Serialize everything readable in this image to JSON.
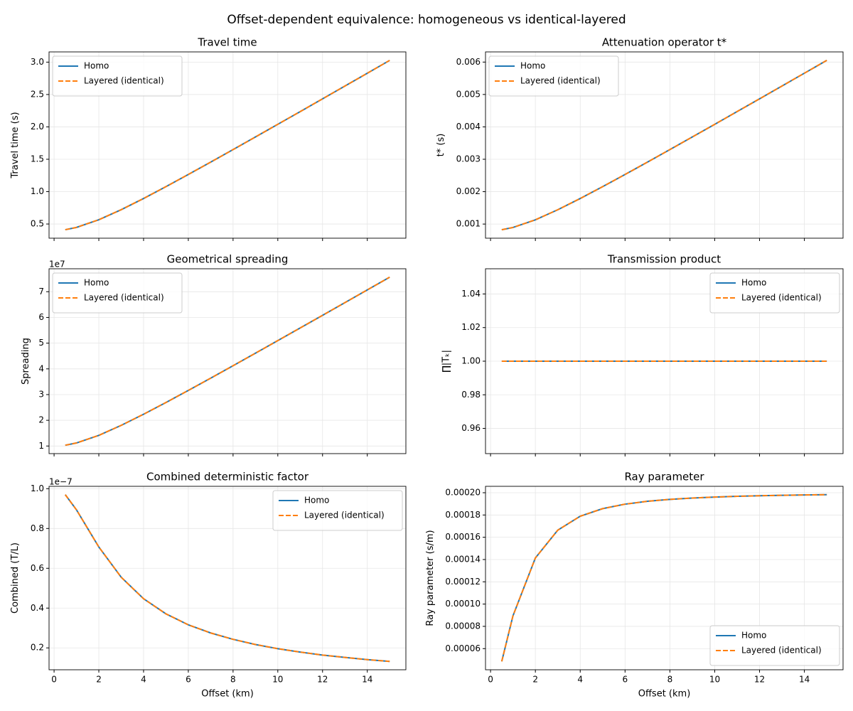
{
  "title": "Offset-dependent equivalence: homogeneous vs identical-layered",
  "chart_data": [
    {
      "type": "line",
      "title": "Travel time",
      "ylabel": "Travel time (s)",
      "legend": "upper left",
      "grid": true,
      "x": [
        0.5,
        1,
        2,
        3,
        4,
        5,
        6,
        7,
        8,
        9,
        10,
        11,
        12,
        13,
        14,
        15
      ],
      "xlim": [
        -0.225,
        15.725
      ],
      "xticks": [
        0,
        2,
        4,
        6,
        8,
        10,
        12,
        14
      ],
      "ylim": [
        0.281,
        3.158
      ],
      "yticks": [
        0.5,
        {
          "value": 1,
          "label": "1.0"
        },
        1.5,
        {
          "value": 2,
          "label": "2.0"
        },
        2.5,
        {
          "value": 3,
          "label": "3.0"
        }
      ],
      "series": [
        {
          "name": "Homo",
          "color": "#1f77b4",
          "linestyle": "solid",
          "values": [
            0.412,
            0.447,
            0.566,
            0.721,
            0.894,
            1.077,
            1.265,
            1.456,
            1.649,
            1.844,
            2.04,
            2.236,
            2.433,
            2.631,
            2.828,
            3.027
          ]
        },
        {
          "name": "Layered (identical)",
          "color": "#ff7f0e",
          "linestyle": "dashed",
          "values": [
            0.412,
            0.447,
            0.566,
            0.721,
            0.894,
            1.077,
            1.265,
            1.456,
            1.649,
            1.844,
            2.04,
            2.236,
            2.433,
            2.631,
            2.828,
            3.027
          ]
        }
      ]
    },
    {
      "type": "line",
      "title": "Attenuation operator t*",
      "ylabel": "t* (s)",
      "legend": "upper left",
      "grid": true,
      "x": [
        0.5,
        1,
        2,
        3,
        4,
        5,
        6,
        7,
        8,
        9,
        10,
        11,
        12,
        13,
        14,
        15
      ],
      "xlim": [
        -0.225,
        15.725
      ],
      "xticks": [
        0,
        2,
        4,
        6,
        8,
        10,
        12,
        14
      ],
      "ylim": [
        0.000564,
        0.006314
      ],
      "yticks": [
        0.001,
        0.002,
        0.003,
        0.004,
        0.005,
        0.006
      ],
      "series": [
        {
          "name": "Homo",
          "color": "#1f77b4",
          "linestyle": "solid",
          "values": [
            0.000825,
            0.000894,
            0.001131,
            0.001442,
            0.001789,
            0.002154,
            0.00253,
            0.002912,
            0.003298,
            0.003688,
            0.004079,
            0.004472,
            0.004866,
            0.005261,
            0.005657,
            0.006053
          ]
        },
        {
          "name": "Layered (identical)",
          "color": "#ff7f0e",
          "linestyle": "dashed",
          "values": [
            0.000825,
            0.000894,
            0.001131,
            0.001442,
            0.001789,
            0.002154,
            0.00253,
            0.002912,
            0.003298,
            0.003688,
            0.004079,
            0.004472,
            0.004866,
            0.005261,
            0.005657,
            0.006053
          ]
        }
      ]
    },
    {
      "type": "line",
      "title": "Geometrical spreading",
      "ylabel": "Spreading",
      "y_offset_label": "1e7",
      "legend": "upper left",
      "grid": true,
      "x": [
        0.5,
        1,
        2,
        3,
        4,
        5,
        6,
        7,
        8,
        9,
        10,
        11,
        12,
        13,
        14,
        15
      ],
      "xlim": [
        -0.225,
        15.725
      ],
      "xticks": [
        0,
        2,
        4,
        6,
        8,
        10,
        12,
        14
      ],
      "ylim": [
        7040200,
        78931800
      ],
      "yticks": [
        {
          "value": 10000000,
          "label": "1"
        },
        {
          "value": 20000000,
          "label": "2"
        },
        {
          "value": 30000000,
          "label": "3"
        },
        {
          "value": 40000000,
          "label": "4"
        },
        {
          "value": 50000000,
          "label": "5"
        },
        {
          "value": 60000000,
          "label": "6"
        },
        {
          "value": 70000000,
          "label": "7"
        }
      ],
      "series": [
        {
          "name": "Homo",
          "color": "#1f77b4",
          "linestyle": "solid",
          "values": [
            10308000,
            11180000,
            14142000,
            18028000,
            22361000,
            26926000,
            31623000,
            36401000,
            41231000,
            46098000,
            50990000,
            55902000,
            60828000,
            65765000,
            70711000,
            75664000
          ]
        },
        {
          "name": "Layered (identical)",
          "color": "#ff7f0e",
          "linestyle": "dashed",
          "values": [
            10308000,
            11180000,
            14142000,
            18028000,
            22361000,
            26926000,
            31623000,
            36401000,
            41231000,
            46098000,
            50990000,
            55902000,
            60828000,
            65765000,
            70711000,
            75664000
          ]
        }
      ]
    },
    {
      "type": "line",
      "title": "Transmission product",
      "ylabel": "∏|Tₖ|",
      "legend": "upper right",
      "grid": true,
      "x": [
        0.5,
        1,
        2,
        3,
        4,
        5,
        6,
        7,
        8,
        9,
        10,
        11,
        12,
        13,
        14,
        15
      ],
      "xlim": [
        -0.225,
        15.725
      ],
      "xticks": [
        0,
        2,
        4,
        6,
        8,
        10,
        12,
        14
      ],
      "ylim": [
        0.945,
        1.055
      ],
      "yticks": [
        0.96,
        0.98,
        {
          "value": 1,
          "label": "1.00"
        },
        1.02,
        1.04
      ],
      "series": [
        {
          "name": "Homo",
          "color": "#1f77b4",
          "linestyle": "solid",
          "values": [
            1,
            1,
            1,
            1,
            1,
            1,
            1,
            1,
            1,
            1,
            1,
            1,
            1,
            1,
            1,
            1
          ]
        },
        {
          "name": "Layered (identical)",
          "color": "#ff7f0e",
          "linestyle": "dashed",
          "values": [
            1,
            1,
            1,
            1,
            1,
            1,
            1,
            1,
            1,
            1,
            1,
            1,
            1,
            1,
            1,
            1
          ]
        }
      ]
    },
    {
      "type": "line",
      "title": "Combined deterministic factor",
      "ylabel": "Combined (T/L)",
      "y_offset_label": "1e−7",
      "xlabel": "Offset (km)",
      "legend": "upper right",
      "grid": true,
      "x": [
        0.5,
        1,
        2,
        3,
        4,
        5,
        6,
        7,
        8,
        9,
        10,
        11,
        12,
        13,
        14,
        15
      ],
      "xlim": [
        -0.225,
        15.725
      ],
      "xticks": [
        0,
        2,
        4,
        6,
        8,
        10,
        12,
        14
      ],
      "ylim": [
        9.01e-09,
        1.0119e-07
      ],
      "yticks": [
        {
          "value": 2e-08,
          "label": "0.2"
        },
        {
          "value": 4e-08,
          "label": "0.4"
        },
        {
          "value": 6e-08,
          "label": "0.6"
        },
        {
          "value": 8e-08,
          "label": "0.8"
        },
        {
          "value": 1e-07,
          "label": "1.0"
        }
      ],
      "series": [
        {
          "name": "Homo",
          "color": "#1f77b4",
          "linestyle": "solid",
          "values": [
            9.7e-08,
            8.94e-08,
            7.07e-08,
            5.55e-08,
            4.47e-08,
            3.71e-08,
            3.16e-08,
            2.75e-08,
            2.43e-08,
            2.17e-08,
            1.96e-08,
            1.79e-08,
            1.64e-08,
            1.52e-08,
            1.41e-08,
            1.32e-08
          ]
        },
        {
          "name": "Layered (identical)",
          "color": "#ff7f0e",
          "linestyle": "dashed",
          "values": [
            9.7e-08,
            8.94e-08,
            7.07e-08,
            5.55e-08,
            4.47e-08,
            3.71e-08,
            3.16e-08,
            2.75e-08,
            2.43e-08,
            2.17e-08,
            1.96e-08,
            1.79e-08,
            1.64e-08,
            1.52e-08,
            1.41e-08,
            1.32e-08
          ]
        }
      ]
    },
    {
      "type": "line",
      "title": "Ray parameter",
      "ylabel": "Ray parameter (s/m)",
      "xlabel": "Offset (km)",
      "legend": "lower right",
      "grid": true,
      "x": [
        0.5,
        1,
        2,
        3,
        4,
        5,
        6,
        7,
        8,
        9,
        10,
        11,
        12,
        13,
        14,
        15
      ],
      "xlim": [
        -0.225,
        15.725
      ],
      "xticks": [
        0,
        2,
        4,
        6,
        8,
        10,
        12,
        14
      ],
      "ylim": [
        4.102e-05,
        0.00020574
      ],
      "yticks": [
        6e-05,
        8e-05,
        {
          "value": 0.0001,
          "label": "0.00010"
        },
        0.00012,
        0.00014,
        0.00016,
        0.00018,
        {
          "value": 0.0002,
          "label": "0.00020"
        }
      ],
      "series": [
        {
          "name": "Homo",
          "color": "#1f77b4",
          "linestyle": "solid",
          "values": [
            4.851e-05,
            8.944e-05,
            0.00014142,
            0.00016641,
            0.00017889,
            0.0001857,
            0.00018974,
            0.0001923,
            0.00019403,
            0.00019524,
            0.00019612,
            0.00019677,
            0.00019728,
            0.00019767,
            0.00019799,
            0.00019825
          ]
        },
        {
          "name": "Layered (identical)",
          "color": "#ff7f0e",
          "linestyle": "dashed",
          "values": [
            4.851e-05,
            8.944e-05,
            0.00014142,
            0.00016641,
            0.00017889,
            0.0001857,
            0.00018974,
            0.0001923,
            0.00019403,
            0.00019524,
            0.00019612,
            0.00019677,
            0.00019728,
            0.00019767,
            0.00019799,
            0.00019825
          ]
        }
      ]
    }
  ]
}
